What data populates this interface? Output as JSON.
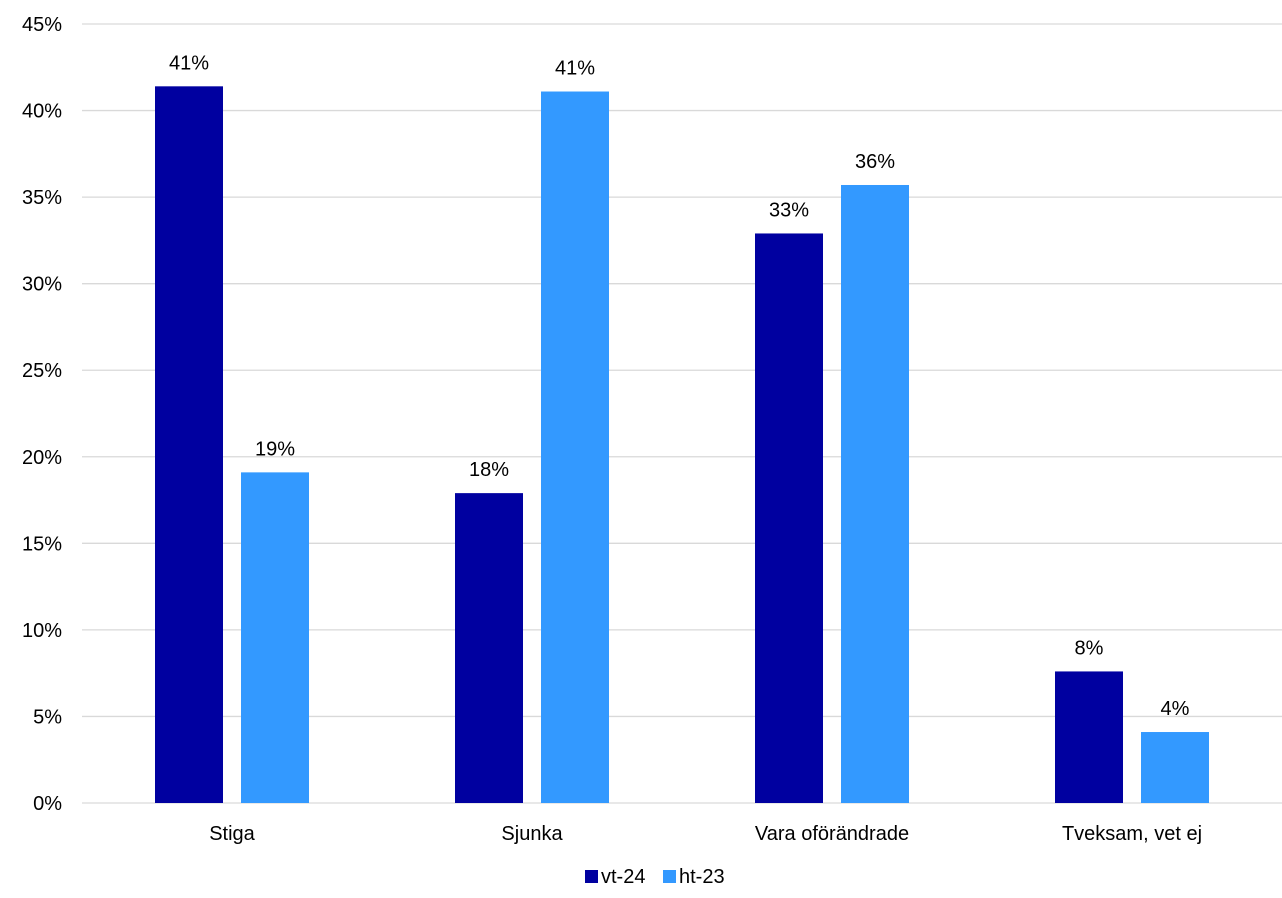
{
  "chart_data": {
    "type": "bar",
    "title": "",
    "xlabel": "",
    "ylabel": "",
    "categories": [
      "Stiga",
      "Sjunka",
      "Vara oförändrade",
      "Tveksam, vet ej"
    ],
    "series": [
      {
        "name": "vt-24",
        "color": "#0000a0",
        "values": [
          41.4,
          17.9,
          32.9,
          7.6
        ],
        "labels": [
          "41%",
          "18%",
          "33%",
          "8%"
        ]
      },
      {
        "name": "ht-23",
        "color": "#3399ff",
        "values": [
          19.1,
          41.1,
          35.7,
          4.1
        ],
        "labels": [
          "19%",
          "41%",
          "36%",
          "4%"
        ]
      }
    ],
    "ylim": [
      0,
      45
    ],
    "yticks": [
      0,
      5,
      10,
      15,
      20,
      25,
      30,
      35,
      40,
      45
    ],
    "ytick_labels": [
      "0%",
      "5%",
      "10%",
      "15%",
      "20%",
      "25%",
      "30%",
      "35%",
      "40%",
      "45%"
    ],
    "grid": true,
    "legend": "bottom-center"
  }
}
